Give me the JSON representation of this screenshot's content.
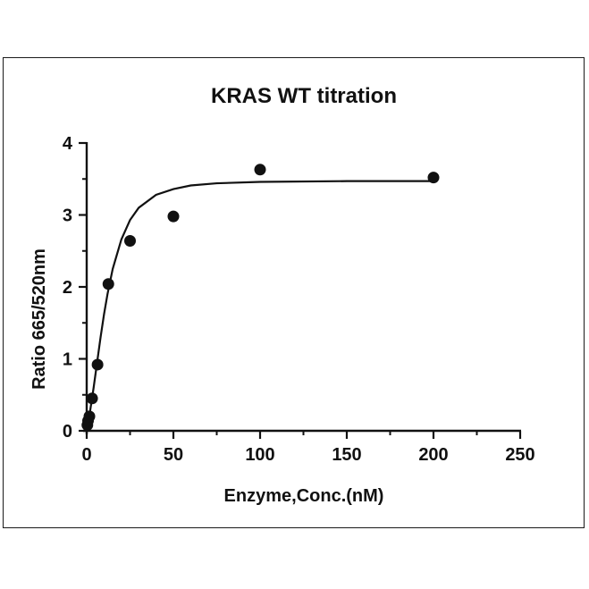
{
  "chart_data": {
    "type": "scatter",
    "title": "KRAS WT titration",
    "xlabel": "Enzyme,Conc.(nM)",
    "ylabel": "Ratio 665/520nm",
    "xlim": [
      0,
      250
    ],
    "ylim": [
      0,
      4
    ],
    "x_ticks": [
      "0",
      "50",
      "100",
      "150",
      "200",
      "250"
    ],
    "y_ticks": [
      "0",
      "1",
      "2",
      "3",
      "4"
    ],
    "grid": false,
    "legend": "none",
    "colors": {
      "points": "#111111",
      "curve": "#111111",
      "axes": "#111111"
    },
    "series": [
      {
        "values": [
          {
            "x": 0.39,
            "y": 0.08
          },
          {
            "x": 0.78,
            "y": 0.14
          },
          {
            "x": 1.56,
            "y": 0.2
          },
          {
            "x": 3.13,
            "y": 0.45
          },
          {
            "x": 6.25,
            "y": 0.92
          },
          {
            "x": 12.5,
            "y": 2.04
          },
          {
            "x": 25,
            "y": 2.64
          },
          {
            "x": 50,
            "y": 2.98
          },
          {
            "x": 100,
            "y": 3.63
          },
          {
            "x": 200,
            "y": 3.52
          }
        ]
      }
    ],
    "fit_curve": [
      {
        "x": 0,
        "y": 0.03
      },
      {
        "x": 2,
        "y": 0.28
      },
      {
        "x": 4,
        "y": 0.6
      },
      {
        "x": 6,
        "y": 0.95
      },
      {
        "x": 8,
        "y": 1.3
      },
      {
        "x": 10,
        "y": 1.62
      },
      {
        "x": 12,
        "y": 1.9
      },
      {
        "x": 15,
        "y": 2.25
      },
      {
        "x": 20,
        "y": 2.66
      },
      {
        "x": 25,
        "y": 2.93
      },
      {
        "x": 30,
        "y": 3.1
      },
      {
        "x": 40,
        "y": 3.28
      },
      {
        "x": 50,
        "y": 3.36
      },
      {
        "x": 60,
        "y": 3.41
      },
      {
        "x": 75,
        "y": 3.44
      },
      {
        "x": 100,
        "y": 3.46
      },
      {
        "x": 150,
        "y": 3.47
      },
      {
        "x": 200,
        "y": 3.47
      }
    ]
  }
}
